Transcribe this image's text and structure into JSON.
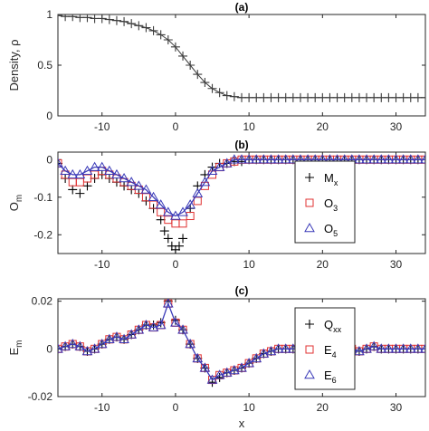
{
  "chart_data": [
    {
      "panel": "(a)",
      "type": "line",
      "title": "(a)",
      "xlabel": "",
      "ylabel": "Density, ρ",
      "xlim": [
        -16,
        34
      ],
      "ylim": [
        0,
        1
      ],
      "xticks": [
        -10,
        0,
        10,
        20,
        30
      ],
      "yticks": [
        0,
        0.5,
        1
      ],
      "ytick_labels": [
        "0",
        "0.5",
        "1"
      ],
      "series": [
        {
          "marker": "+",
          "color": "#3c3c3c",
          "x": [
            -16,
            -15,
            -14,
            -13,
            -12,
            -11,
            -10,
            -9,
            -8,
            -7,
            -6,
            -5,
            -4,
            -3,
            -2,
            -1,
            0,
            1,
            2,
            3,
            4,
            5,
            6,
            7,
            8,
            9,
            10,
            11,
            12,
            13,
            14,
            15,
            16,
            17,
            18,
            19,
            20,
            21,
            22,
            23,
            24,
            25,
            26,
            27,
            28,
            29,
            30,
            31,
            32,
            33,
            34
          ],
          "values": [
            0.99,
            0.98,
            0.98,
            0.97,
            0.97,
            0.96,
            0.96,
            0.95,
            0.94,
            0.93,
            0.91,
            0.89,
            0.87,
            0.84,
            0.8,
            0.75,
            0.68,
            0.59,
            0.5,
            0.41,
            0.33,
            0.27,
            0.23,
            0.2,
            0.19,
            0.18,
            0.18,
            0.18,
            0.18,
            0.18,
            0.18,
            0.18,
            0.18,
            0.18,
            0.18,
            0.18,
            0.18,
            0.18,
            0.18,
            0.18,
            0.18,
            0.18,
            0.18,
            0.18,
            0.18,
            0.18,
            0.18,
            0.18,
            0.18,
            0.18,
            0.18
          ]
        }
      ]
    },
    {
      "panel": "(b)",
      "type": "scatter",
      "title": "(b)",
      "xlabel": "",
      "ylabel": "O_m",
      "xlim": [
        -16,
        34
      ],
      "ylim": [
        -0.25,
        0.02
      ],
      "xticks": [
        -10,
        0,
        10,
        20,
        30
      ],
      "yticks": [
        -0.2,
        -0.1,
        0
      ],
      "ytick_labels": [
        "-0.2",
        "-0.1",
        "0"
      ],
      "legend_position": "right",
      "series": [
        {
          "name": "M",
          "sub": "x",
          "marker": "+",
          "color": "#000000",
          "x": [
            -16,
            -15,
            -14,
            -13,
            -12,
            -11,
            -10,
            -9,
            -8,
            -7,
            -6,
            -5,
            -4,
            -3,
            -2,
            -1.5,
            -1,
            -0.5,
            0,
            0.5,
            1,
            2,
            3,
            4,
            5,
            6,
            7,
            8,
            9,
            10,
            11,
            12,
            13,
            14,
            15,
            16,
            17,
            18,
            19,
            20,
            21,
            22,
            23,
            24,
            25,
            26,
            27,
            28,
            29,
            30,
            31,
            32,
            33,
            34
          ],
          "values": [
            -0.01,
            -0.05,
            -0.08,
            -0.09,
            -0.07,
            -0.05,
            -0.04,
            -0.05,
            -0.06,
            -0.07,
            -0.08,
            -0.09,
            -0.11,
            -0.13,
            -0.16,
            -0.19,
            -0.21,
            -0.23,
            -0.24,
            -0.23,
            -0.21,
            -0.13,
            -0.07,
            -0.04,
            -0.02,
            -0.01,
            -0.01,
            -0.005,
            -0.005,
            0,
            0,
            0,
            0,
            0,
            0,
            0,
            0,
            0,
            0,
            0,
            0,
            0,
            0,
            0,
            0,
            0,
            0,
            0,
            0,
            0,
            0,
            0,
            0,
            0
          ]
        },
        {
          "name": "O",
          "sub": "3",
          "marker": "square",
          "color": "#e03030",
          "x": [
            -16,
            -15,
            -14,
            -13,
            -12,
            -11,
            -10,
            -9,
            -8,
            -7,
            -6,
            -5,
            -4,
            -3,
            -2,
            -1,
            0,
            1,
            2,
            3,
            4,
            5,
            6,
            7,
            8,
            9,
            10,
            11,
            12,
            13,
            14,
            15,
            16,
            17,
            18,
            19,
            20,
            21,
            22,
            23,
            24,
            25,
            26,
            27,
            28,
            29,
            30,
            31,
            32,
            33,
            34
          ],
          "values": [
            -0.01,
            -0.04,
            -0.06,
            -0.06,
            -0.05,
            -0.04,
            -0.03,
            -0.04,
            -0.05,
            -0.06,
            -0.07,
            -0.08,
            -0.1,
            -0.12,
            -0.14,
            -0.16,
            -0.17,
            -0.17,
            -0.15,
            -0.11,
            -0.07,
            -0.04,
            -0.02,
            -0.01,
            -0.005,
            0,
            0,
            0,
            0,
            0,
            0,
            0,
            0,
            0,
            0,
            0,
            0,
            0,
            0,
            0,
            0,
            0,
            0,
            0,
            0,
            0,
            0,
            0,
            0,
            0,
            0
          ]
        },
        {
          "name": "O",
          "sub": "5",
          "marker": "triangle",
          "color": "#3a3ab8",
          "x": [
            -16,
            -15,
            -14,
            -13,
            -12,
            -11,
            -10,
            -9,
            -8,
            -7,
            -6,
            -5,
            -4,
            -3,
            -2,
            -1,
            0,
            1,
            2,
            3,
            4,
            5,
            6,
            7,
            8,
            9,
            10,
            11,
            12,
            13,
            14,
            15,
            16,
            17,
            18,
            19,
            20,
            21,
            22,
            23,
            24,
            25,
            26,
            27,
            28,
            29,
            30,
            31,
            32,
            33,
            34
          ],
          "values": [
            -0.01,
            -0.03,
            -0.04,
            -0.04,
            -0.03,
            -0.02,
            -0.02,
            -0.03,
            -0.04,
            -0.05,
            -0.06,
            -0.07,
            -0.08,
            -0.1,
            -0.12,
            -0.14,
            -0.15,
            -0.14,
            -0.12,
            -0.09,
            -0.06,
            -0.03,
            -0.02,
            -0.01,
            0,
            0,
            0,
            0,
            0,
            0,
            0,
            0,
            0,
            0,
            0,
            0,
            0,
            0,
            0,
            0,
            0,
            0,
            0,
            0,
            0,
            0,
            0,
            0,
            0,
            0,
            0
          ]
        }
      ]
    },
    {
      "panel": "(c)",
      "type": "scatter",
      "title": "(c)",
      "xlabel": "x",
      "ylabel": "E_m",
      "xlim": [
        -16,
        34
      ],
      "ylim": [
        -0.02,
        0.021
      ],
      "xticks": [
        -10,
        0,
        10,
        20,
        30
      ],
      "yticks": [
        -0.02,
        0,
        0.02
      ],
      "ytick_labels": [
        "-0.02",
        "0",
        "0.02"
      ],
      "legend_position": "right",
      "series": [
        {
          "name": "Q",
          "sub": "xx",
          "marker": "+",
          "color": "#000000",
          "x": [
            -16,
            -15,
            -14,
            -13,
            -12,
            -11,
            -10,
            -9,
            -8,
            -7,
            -6,
            -5,
            -4,
            -3,
            -2,
            -1,
            0,
            1,
            2,
            3,
            4,
            5,
            6,
            7,
            8,
            9,
            10,
            11,
            12,
            13,
            14,
            15,
            16,
            17,
            18,
            19,
            20,
            21,
            22,
            23,
            24,
            25,
            26,
            27,
            28,
            29,
            30,
            31,
            32,
            33,
            34
          ],
          "values": [
            0,
            0.001,
            0.002,
            0.001,
            -0.001,
            0,
            0.002,
            0.004,
            0.005,
            0.004,
            0.006,
            0.008,
            0.01,
            0.01,
            0.011,
            0.02,
            0.012,
            0.008,
            0.002,
            -0.004,
            -0.008,
            -0.014,
            -0.012,
            -0.01,
            -0.009,
            -0.008,
            -0.006,
            -0.004,
            -0.002,
            -0.001,
            0,
            0,
            0,
            0,
            0,
            0,
            0,
            0,
            0,
            0.001,
            0,
            -0.001,
            0,
            0.001,
            0,
            0,
            0,
            0,
            0,
            0,
            0
          ]
        },
        {
          "name": "E",
          "sub": "4",
          "marker": "square",
          "color": "#e03030",
          "x": [
            -16,
            -15,
            -14,
            -13,
            -12,
            -11,
            -10,
            -9,
            -8,
            -7,
            -6,
            -5,
            -4,
            -3,
            -2,
            -1,
            0,
            1,
            2,
            3,
            4,
            5,
            6,
            7,
            8,
            9,
            10,
            11,
            12,
            13,
            14,
            15,
            16,
            17,
            18,
            19,
            20,
            21,
            22,
            23,
            24,
            25,
            26,
            27,
            28,
            29,
            30,
            31,
            32,
            33,
            34
          ],
          "values": [
            0,
            0.001,
            0.002,
            0.001,
            -0.001,
            0,
            0.002,
            0.004,
            0.005,
            0.004,
            0.006,
            0.008,
            0.01,
            0.009,
            0.01,
            0.019,
            0.011,
            0.008,
            0.002,
            -0.004,
            -0.008,
            -0.013,
            -0.011,
            -0.01,
            -0.009,
            -0.008,
            -0.006,
            -0.004,
            -0.002,
            -0.001,
            0,
            0,
            0,
            0,
            0,
            0,
            0,
            0,
            0,
            0.001,
            0,
            -0.001,
            0,
            0.001,
            0,
            0,
            0,
            0,
            0,
            0,
            0
          ]
        },
        {
          "name": "E",
          "sub": "6",
          "marker": "triangle",
          "color": "#3a3ab8",
          "x": [
            -16,
            -15,
            -14,
            -13,
            -12,
            -11,
            -10,
            -9,
            -8,
            -7,
            -6,
            -5,
            -4,
            -3,
            -2,
            -1,
            0,
            1,
            2,
            3,
            4,
            5,
            6,
            7,
            8,
            9,
            10,
            11,
            12,
            13,
            14,
            15,
            16,
            17,
            18,
            19,
            20,
            21,
            22,
            23,
            24,
            25,
            26,
            27,
            28,
            29,
            30,
            31,
            32,
            33,
            34
          ],
          "values": [
            0,
            0.001,
            0.002,
            0.001,
            -0.001,
            0,
            0.002,
            0.004,
            0.005,
            0.004,
            0.006,
            0.008,
            0.01,
            0.009,
            0.01,
            0.019,
            0.011,
            0.008,
            0.002,
            -0.004,
            -0.008,
            -0.013,
            -0.011,
            -0.01,
            -0.009,
            -0.008,
            -0.006,
            -0.004,
            -0.002,
            -0.001,
            0,
            0,
            0,
            0,
            0,
            0,
            0,
            0,
            0,
            0.001,
            0,
            -0.001,
            0,
            0.001,
            0,
            0,
            0,
            0,
            0,
            0,
            0
          ]
        }
      ]
    }
  ]
}
